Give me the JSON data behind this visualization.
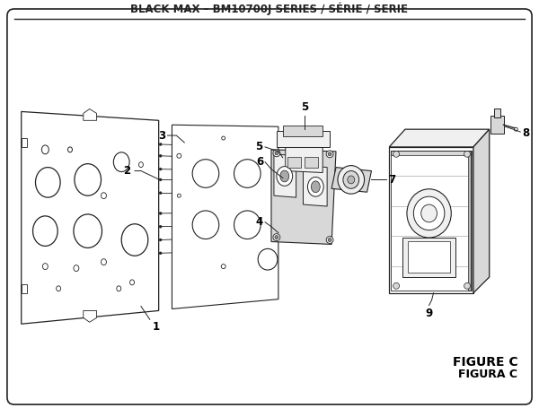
{
  "title": "BLACK MAX – BM10700J SERIES / SÉRIE / SERIE",
  "figure_label1": "FIGURE C",
  "figure_label2": "FIGURA C",
  "bg_color": "#ffffff",
  "border_color": "#333333",
  "line_color": "#222222",
  "fill_light": "#f0f0f0",
  "fill_mid": "#d8d8d8",
  "fill_dark": "#b8b8b8",
  "fill_white": "#ffffff",
  "title_fontsize": 8.5,
  "label_fontsize": 8,
  "figure_label_fontsize": 9
}
